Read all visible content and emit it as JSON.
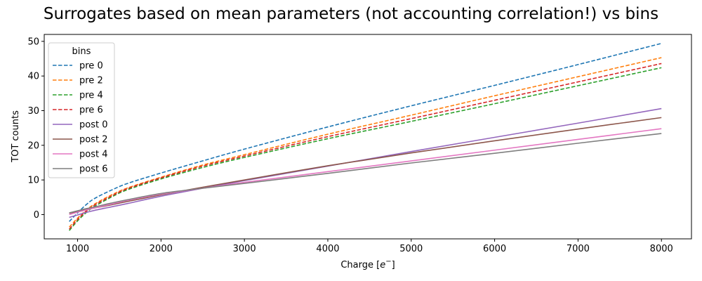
{
  "chart_data": {
    "type": "line",
    "title": "Surrogates based on mean parameters (not accounting correlation!) vs bins",
    "xlabel": "Charge [",
    "xlabel_sup_base": "e",
    "xlabel_sup": "−",
    "xlabel_suffix": "]",
    "ylabel": "TOT counts",
    "xlim": [
      600,
      8360
    ],
    "ylim": [
      -7,
      52
    ],
    "xticks": [
      1000,
      2000,
      3000,
      4000,
      5000,
      6000,
      7000,
      8000
    ],
    "yticks": [
      0,
      10,
      20,
      30,
      40,
      50
    ],
    "grid": false,
    "legend": {
      "title": "bins",
      "placement": "top-left"
    },
    "x": [
      900,
      1000,
      1100,
      1200,
      1400,
      1600,
      2000,
      2500,
      3000,
      4000,
      5000,
      6000,
      7000,
      8000
    ],
    "series": [
      {
        "name": "pre 0",
        "style": "dashed",
        "color": "#1f77b4",
        "values": [
          -2.0,
          0.5,
          2.8,
          4.6,
          7.0,
          9.0,
          12.0,
          15.5,
          18.9,
          25.3,
          31.4,
          37.3,
          43.3,
          49.4
        ]
      },
      {
        "name": "pre 2",
        "style": "dashed",
        "color": "#ff7f0e",
        "values": [
          -3.6,
          -1.0,
          1.2,
          3.0,
          5.6,
          7.7,
          10.8,
          14.3,
          17.3,
          23.2,
          28.7,
          34.3,
          39.8,
          45.3
        ]
      },
      {
        "name": "pre 4",
        "style": "dashed",
        "color": "#2ca02c",
        "values": [
          -4.6,
          -1.8,
          0.5,
          2.3,
          5.0,
          7.2,
          10.3,
          13.6,
          16.5,
          21.9,
          26.9,
          32.0,
          37.2,
          42.4
        ]
      },
      {
        "name": "pre 6",
        "style": "dashed",
        "color": "#d62728",
        "values": [
          -4.2,
          -1.4,
          0.9,
          2.7,
          5.3,
          7.5,
          10.6,
          14.0,
          16.9,
          22.5,
          27.7,
          33.0,
          38.3,
          43.6
        ]
      },
      {
        "name": "post 0",
        "style": "solid",
        "color": "#9467bd",
        "values": [
          -0.8,
          -0.1,
          0.6,
          1.2,
          2.2,
          3.2,
          5.3,
          7.6,
          9.8,
          14.0,
          18.2,
          22.3,
          26.4,
          30.6
        ]
      },
      {
        "name": "post 2",
        "style": "solid",
        "color": "#8c564b",
        "values": [
          0.4,
          0.9,
          1.4,
          1.9,
          2.8,
          3.8,
          5.7,
          7.9,
          10.0,
          14.1,
          17.8,
          21.3,
          24.7,
          28.0
        ]
      },
      {
        "name": "post 4",
        "style": "solid",
        "color": "#e377c2",
        "values": [
          0.0,
          0.7,
          1.3,
          1.9,
          3.0,
          4.1,
          5.9,
          7.6,
          9.3,
          12.4,
          15.5,
          18.6,
          21.7,
          24.8
        ]
      },
      {
        "name": "post 6",
        "style": "solid",
        "color": "#7f7f7f",
        "values": [
          0.5,
          1.1,
          1.7,
          2.2,
          3.3,
          4.3,
          6.1,
          7.6,
          9.0,
          11.9,
          14.9,
          17.7,
          20.6,
          23.4
        ]
      }
    ]
  }
}
